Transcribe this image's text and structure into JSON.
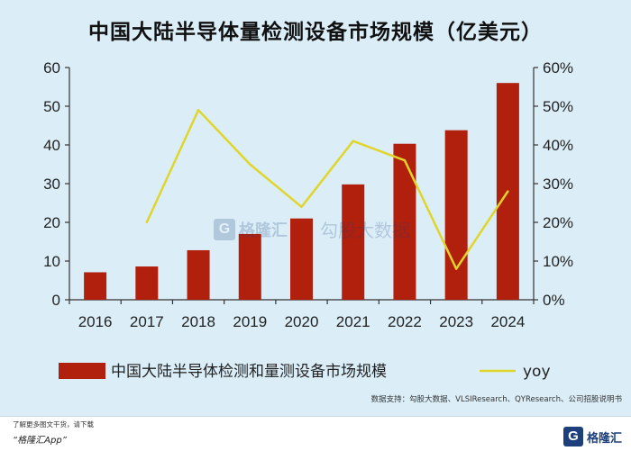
{
  "title": "中国大陆半导体量检测设备市场规模（亿美元）",
  "chart_data": {
    "type": "bar+line",
    "categories": [
      "2016",
      "2017",
      "2018",
      "2019",
      "2020",
      "2021",
      "2022",
      "2023",
      "2024"
    ],
    "series": [
      {
        "name": "中国大陆半导体检测和量测设备市场规模",
        "type": "bar",
        "axis": "left",
        "color": "#b11f0d",
        "values": [
          7.1,
          8.6,
          12.8,
          17.0,
          21.0,
          29.8,
          40.3,
          43.8,
          56.0
        ]
      },
      {
        "name": "yoy",
        "type": "line",
        "axis": "right",
        "color": "#e0d52a",
        "values": [
          null,
          20,
          49,
          35,
          24,
          41,
          36,
          8,
          28
        ]
      }
    ],
    "ylim_left": [
      0,
      60
    ],
    "yticks_left": [
      "0",
      "10",
      "20",
      "30",
      "40",
      "50",
      "60"
    ],
    "ylim_right": [
      0,
      60
    ],
    "yticks_right": [
      "0%",
      "10%",
      "20%",
      "30%",
      "40%",
      "50%",
      "60%"
    ],
    "grid": false,
    "legend_position": "bottom"
  },
  "source": "数据支持：勾股大数据、VLSIResearch、QYResearch、公司招股说明书",
  "footer": {
    "line1": "了解更多图文干货，请下载",
    "line2": "“格隆汇App”"
  },
  "brand": {
    "logo_letter": "G",
    "name": "格隆汇"
  },
  "watermark": {
    "logo_letter": "G",
    "name": "格隆汇",
    "name2": "勾股大数据"
  }
}
